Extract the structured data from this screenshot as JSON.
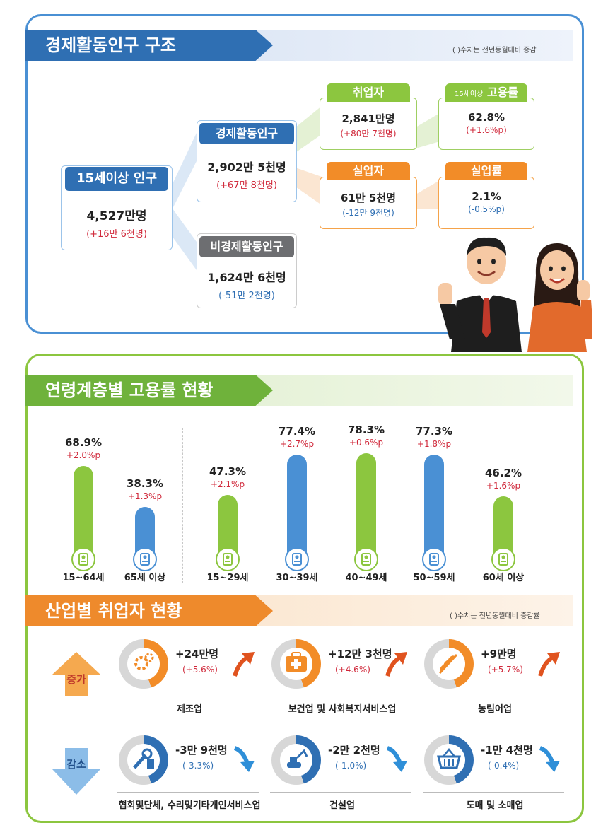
{
  "structure": {
    "title": "경제활동인구 구조",
    "note": "( )수치는 전년동월대비 증감",
    "pop15": {
      "label": "15세이상 인구",
      "value": "4,527만명",
      "delta": "(+16만 6천명)"
    },
    "active": {
      "label": "경제활동인구",
      "value": "2,902만 5천명",
      "delta": "(+67만 8천명)"
    },
    "inactive": {
      "label": "비경제활동인구",
      "value": "1,624만 6천명",
      "delta": "(-51만 2천명)"
    },
    "employed": {
      "label": "취업자",
      "value": "2,841만명",
      "delta": "(+80만 7천명)"
    },
    "unemployed": {
      "label": "실업자",
      "value": "61만 5천명",
      "delta": "(-12만 9천명)"
    },
    "emp_rate": {
      "label_small": "15세이상",
      "label": "고용률",
      "value": "62.8%",
      "delta": "(+1.6%p)"
    },
    "unemp_rate": {
      "label": "실업률",
      "value": "2.1%",
      "delta": "(-0.5%p)"
    }
  },
  "age": {
    "title": "연령계층별 고용률 현황",
    "items": [
      {
        "label": "15~64세",
        "value": "68.9%",
        "delta": "+2.0%p",
        "rate": 68.9,
        "color": "#8cc63f"
      },
      {
        "label": "65세 이상",
        "value": "38.3%",
        "delta": "+1.3%p",
        "rate": 38.3,
        "color": "#4a90d4"
      },
      {
        "label": "15~29세",
        "value": "47.3%",
        "delta": "+2.1%p",
        "rate": 47.3,
        "color": "#8cc63f"
      },
      {
        "label": "30~39세",
        "value": "77.4%",
        "delta": "+2.7%p",
        "rate": 77.4,
        "color": "#4a90d4"
      },
      {
        "label": "40~49세",
        "value": "78.3%",
        "delta": "+0.6%p",
        "rate": 78.3,
        "color": "#8cc63f"
      },
      {
        "label": "50~59세",
        "value": "77.3%",
        "delta": "+1.8%p",
        "rate": 77.3,
        "color": "#4a90d4"
      },
      {
        "label": "60세 이상",
        "value": "46.2%",
        "delta": "+1.6%p",
        "rate": 46.2,
        "color": "#8cc63f"
      }
    ]
  },
  "industry": {
    "title": "산업별 취업자 현황",
    "note": "( )수치는 전년동월대비 증감률",
    "increase_label": "증가",
    "decrease_label": "감소",
    "increase": [
      {
        "name": "제조업",
        "value": "+24만명",
        "delta": "(+5.6%)",
        "icon": "gears-icon"
      },
      {
        "name": "보건업 및 사회복지서비스업",
        "value": "+12만 3천명",
        "delta": "(+4.6%)",
        "icon": "medical-kit-icon"
      },
      {
        "name": "농림어업",
        "value": "+9만명",
        "delta": "(+5.7%)",
        "icon": "wheat-icon"
      }
    ],
    "decrease": [
      {
        "name": "협회및단체, 수리및기타개인서비스업",
        "value": "-3만 9천명",
        "delta": "(-3.3%)",
        "icon": "wrench-icon"
      },
      {
        "name": "건설업",
        "value": "-2만 2천명",
        "delta": "(-1.0%)",
        "icon": "excavator-icon"
      },
      {
        "name": "도매 및 소매업",
        "value": "-1만 4천명",
        "delta": "(-0.4%)",
        "icon": "basket-icon"
      }
    ]
  }
}
